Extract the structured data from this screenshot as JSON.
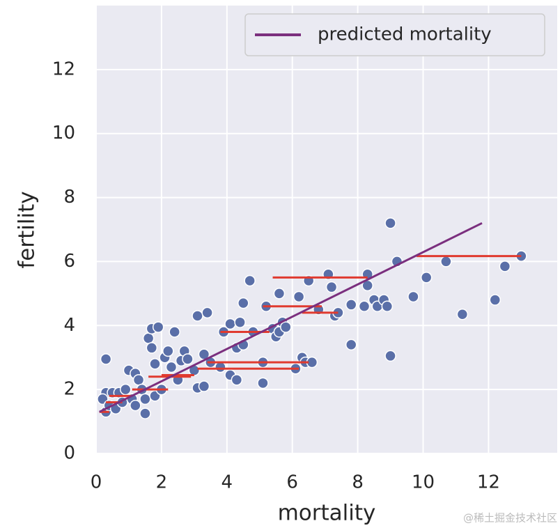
{
  "chart_data": {
    "type": "scatter",
    "xlabel": "mortality",
    "ylabel": "fertility",
    "xlim": [
      0,
      14.1
    ],
    "ylim": [
      0,
      14
    ],
    "xticks": [
      0,
      2,
      4,
      6,
      8,
      10,
      12
    ],
    "yticks": [
      0,
      2,
      4,
      6,
      8,
      10,
      12
    ],
    "grid": true,
    "legend_loc": "upper right",
    "points": {
      "color": "#5a6fa8",
      "x": [
        0.3,
        0.2,
        0.3,
        0.4,
        0.3,
        0.5,
        0.6,
        0.7,
        0.8,
        0.9,
        1.0,
        1.1,
        1.2,
        1.2,
        1.3,
        1.4,
        1.5,
        1.5,
        1.6,
        1.7,
        1.7,
        1.8,
        1.9,
        1.8,
        2.0,
        2.1,
        2.2,
        2.3,
        2.4,
        2.5,
        2.6,
        2.7,
        2.8,
        3.0,
        3.1,
        3.1,
        3.3,
        3.4,
        3.3,
        3.5,
        3.8,
        3.9,
        4.1,
        4.1,
        4.3,
        4.3,
        4.4,
        4.5,
        4.5,
        4.7,
        4.8,
        5.1,
        5.1,
        5.2,
        5.4,
        5.5,
        5.6,
        5.6,
        5.7,
        5.8,
        6.1,
        6.2,
        6.3,
        6.4,
        6.5,
        6.6,
        6.8,
        7.1,
        7.2,
        7.3,
        7.4,
        7.8,
        7.8,
        8.2,
        8.3,
        8.3,
        8.5,
        8.6,
        8.8,
        8.9,
        9.0,
        9.0,
        9.2,
        9.7,
        10.1,
        10.7,
        11.2,
        12.2,
        12.5,
        13.0
      ],
      "y": [
        1.9,
        1.7,
        1.3,
        1.5,
        2.95,
        1.9,
        1.4,
        1.9,
        1.6,
        2.0,
        2.6,
        1.7,
        2.5,
        1.5,
        2.3,
        2.0,
        1.7,
        1.25,
        3.6,
        3.9,
        3.3,
        2.8,
        3.95,
        1.8,
        2.0,
        3.0,
        3.2,
        2.7,
        3.8,
        2.3,
        2.9,
        3.2,
        2.95,
        2.6,
        4.3,
        2.05,
        2.1,
        4.4,
        3.1,
        2.85,
        2.7,
        3.8,
        4.05,
        2.45,
        2.3,
        3.3,
        4.1,
        4.7,
        3.4,
        5.4,
        3.8,
        2.2,
        2.85,
        4.6,
        3.9,
        3.65,
        5.0,
        3.8,
        4.1,
        3.95,
        2.65,
        4.9,
        3.0,
        2.85,
        5.4,
        2.85,
        4.5,
        5.6,
        5.2,
        4.3,
        4.4,
        3.4,
        4.65,
        4.6,
        5.6,
        5.25,
        4.8,
        4.6,
        4.8,
        4.6,
        7.2,
        3.05,
        6.0,
        4.9,
        5.5,
        6.0,
        4.35,
        4.8,
        5.85,
        6.17
      ]
    },
    "series": [
      {
        "name": "predicted mortality",
        "color": "#7b2f7e",
        "x": [
          0.1,
          11.8
        ],
        "y": [
          1.3,
          7.2
        ]
      }
    ],
    "segments": {
      "color": "#e03a2f",
      "x0": [
        9.8,
        5.4,
        5.1,
        6.3,
        3.8,
        3.4,
        3.1,
        2.0,
        1.6,
        1.1,
        0.4,
        0.3,
        0.1
      ],
      "x1": [
        13.0,
        8.3,
        6.9,
        7.4,
        5.3,
        6.5,
        6.2,
        3.0,
        2.9,
        2.2,
        1.1,
        0.8,
        0.4
      ],
      "y": [
        6.17,
        5.5,
        4.6,
        4.4,
        3.8,
        2.85,
        2.65,
        2.45,
        2.4,
        2.0,
        1.8,
        1.6,
        1.3
      ]
    },
    "watermark": "@稀土掘金技术社区"
  }
}
